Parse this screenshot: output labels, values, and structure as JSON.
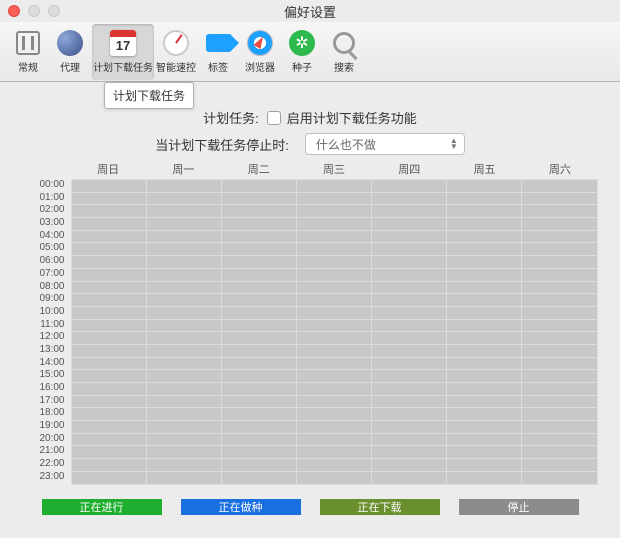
{
  "window": {
    "title": "偏好设置"
  },
  "toolbar": {
    "items": [
      {
        "key": "general",
        "label": "常规"
      },
      {
        "key": "proxy",
        "label": "代理"
      },
      {
        "key": "schedule",
        "label": "计划下载任务",
        "selected": true,
        "cal_num": "17"
      },
      {
        "key": "speed",
        "label": "智能速控"
      },
      {
        "key": "tag",
        "label": "标签"
      },
      {
        "key": "browser",
        "label": "浏览器"
      },
      {
        "key": "seed",
        "label": "种子"
      },
      {
        "key": "search",
        "label": "搜索"
      }
    ]
  },
  "tooltip": "计划下载任务",
  "form": {
    "plan_label": "计划任务:",
    "enable_label": "启用计划下载任务功能",
    "stop_label": "当计划下载任务停止时:",
    "stop_action": "什么也不做"
  },
  "schedule": {
    "days": [
      "周日",
      "周一",
      "周二",
      "周三",
      "周四",
      "周五",
      "周六"
    ],
    "hours": [
      "00:00",
      "01:00",
      "02:00",
      "03:00",
      "04:00",
      "05:00",
      "06:00",
      "07:00",
      "08:00",
      "09:00",
      "10:00",
      "11:00",
      "12:00",
      "13:00",
      "14:00",
      "15:00",
      "16:00",
      "17:00",
      "18:00",
      "19:00",
      "20:00",
      "21:00",
      "22:00",
      "23:00"
    ],
    "cell_bg": "#c8c8c8",
    "cell_border": "#dcdcdc"
  },
  "legend": {
    "items": [
      {
        "label": "正在进行",
        "color": "#1fae2f"
      },
      {
        "label": "正在做种",
        "color": "#1a6fe0"
      },
      {
        "label": "正在下载",
        "color": "#6a8f2e"
      },
      {
        "label": "停止",
        "color": "#8c8c8c"
      }
    ]
  }
}
